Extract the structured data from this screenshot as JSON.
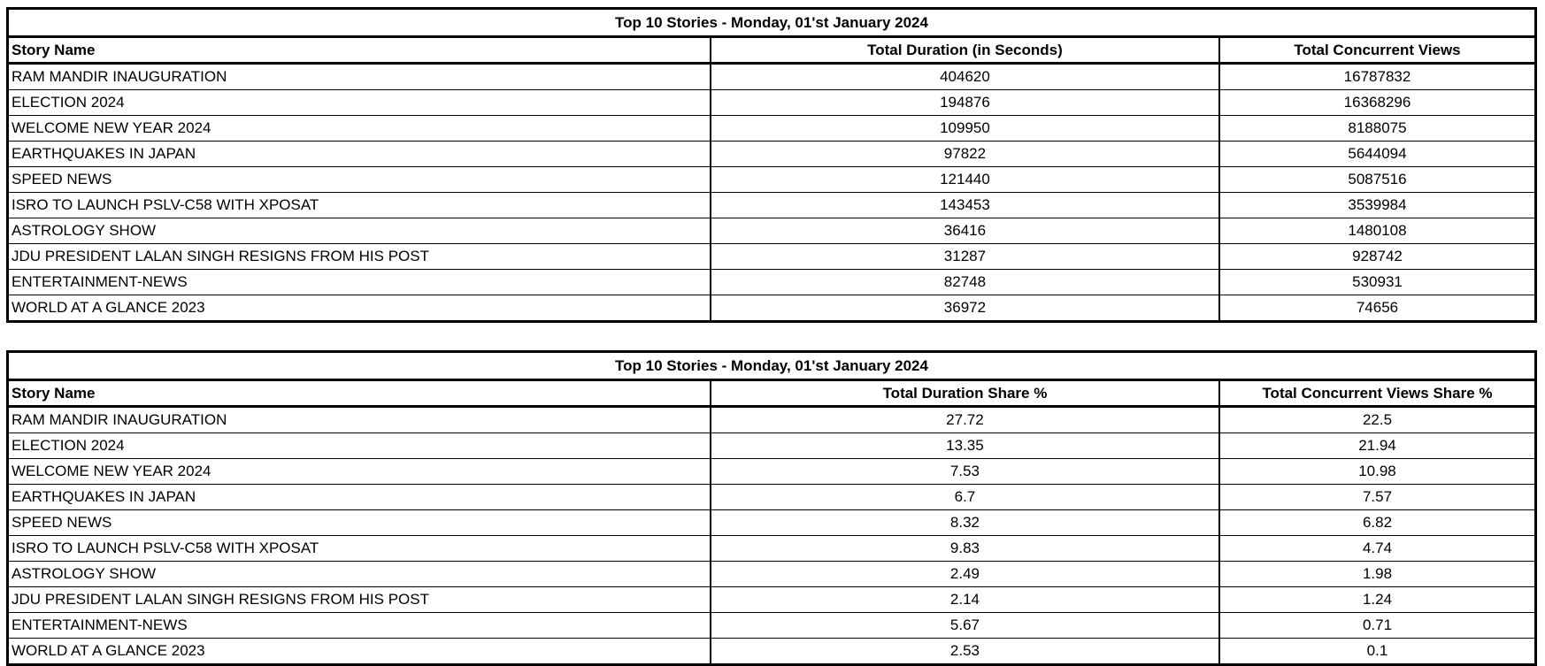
{
  "colors": {
    "background": "#ffffff",
    "border": "#000000",
    "text": "#000000"
  },
  "chart_data": [
    {
      "type": "table",
      "title": "Top 10 Stories - Monday, 01'st January 2024",
      "columns": [
        "Story Name",
        "Total Duration (in Seconds)",
        "Total Concurrent Views"
      ],
      "rows": [
        [
          "RAM MANDIR INAUGURATION",
          "404620",
          "16787832"
        ],
        [
          "ELECTION 2024",
          "194876",
          "16368296"
        ],
        [
          "WELCOME NEW YEAR 2024",
          "109950",
          "8188075"
        ],
        [
          "EARTHQUAKES IN JAPAN",
          "97822",
          "5644094"
        ],
        [
          "SPEED NEWS",
          "121440",
          "5087516"
        ],
        [
          "ISRO TO LAUNCH PSLV-C58 WITH XPOSAT",
          "143453",
          "3539984"
        ],
        [
          "ASTROLOGY SHOW",
          "36416",
          "1480108"
        ],
        [
          "JDU PRESIDENT LALAN SINGH RESIGNS FROM HIS POST",
          "31287",
          "928742"
        ],
        [
          "ENTERTAINMENT-NEWS",
          "82748",
          "530931"
        ],
        [
          "WORLD AT A GLANCE 2023",
          "36972",
          "74656"
        ]
      ]
    },
    {
      "type": "table",
      "title": "Top 10 Stories - Monday, 01'st January 2024",
      "columns": [
        "Story Name",
        "Total Duration Share %",
        "Total Concurrent Views Share %"
      ],
      "rows": [
        [
          "RAM MANDIR INAUGURATION",
          "27.72",
          "22.5"
        ],
        [
          "ELECTION 2024",
          "13.35",
          "21.94"
        ],
        [
          "WELCOME NEW YEAR 2024",
          "7.53",
          "10.98"
        ],
        [
          "EARTHQUAKES IN JAPAN",
          "6.7",
          "7.57"
        ],
        [
          "SPEED NEWS",
          "8.32",
          "6.82"
        ],
        [
          "ISRO TO LAUNCH PSLV-C58 WITH XPOSAT",
          "9.83",
          "4.74"
        ],
        [
          "ASTROLOGY SHOW",
          "2.49",
          "1.98"
        ],
        [
          "JDU PRESIDENT LALAN SINGH RESIGNS FROM HIS POST",
          "2.14",
          "1.24"
        ],
        [
          "ENTERTAINMENT-NEWS",
          "5.67",
          "0.71"
        ],
        [
          "WORLD AT A GLANCE 2023",
          "2.53",
          "0.1"
        ]
      ]
    }
  ]
}
